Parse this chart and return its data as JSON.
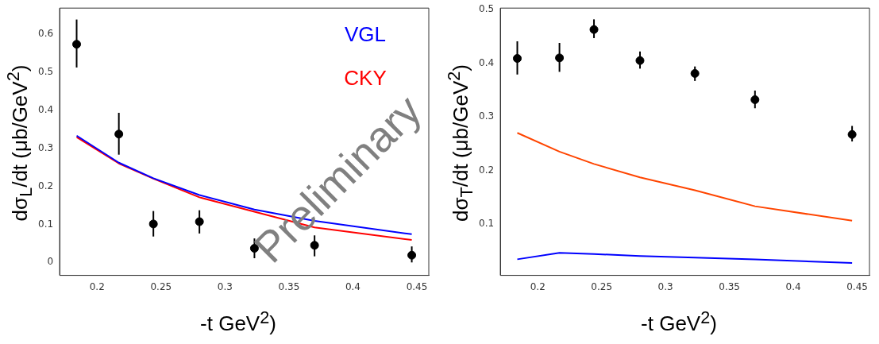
{
  "chart_data": [
    {
      "type": "scatter",
      "xlabel": "-t GeV$^{2}$)",
      "ylabel": "dσ$_{L}$/dt (μb/GeV$^{2}$)",
      "xlim": [
        0.1707,
        0.4593
      ],
      "xticks": [
        0.2,
        0.25,
        0.3,
        0.35,
        0.4,
        0.45
      ],
      "ylim": [
        -0.034,
        0.668
      ],
      "yticks": [
        0,
        0.1,
        0.2,
        0.3,
        0.4,
        0.5,
        0.6
      ],
      "legend": "top right",
      "annotations": [
        "Preliminary"
      ],
      "series": [
        {
          "type": "scatter",
          "marker": "circle",
          "color": "#000000",
          "x": [
            0.184,
            0.217,
            0.244,
            0.28,
            0.323,
            0.37,
            0.446
          ],
          "values": [
            0.573,
            0.337,
            0.101,
            0.107,
            0.037,
            0.045,
            0.019
          ],
          "errors": [
            [
              0.512,
              0.638
            ],
            [
              0.283,
              0.393
            ],
            [
              0.068,
              0.135
            ],
            [
              0.076,
              0.137
            ],
            [
              0.011,
              0.063
            ],
            [
              0.016,
              0.071
            ],
            [
              0.0,
              0.042
            ]
          ]
        },
        {
          "type": "line",
          "name": "VGL",
          "color": "#0000ff",
          "x": [
            0.184,
            0.217,
            0.244,
            0.28,
            0.323,
            0.37,
            0.446
          ],
          "values": [
            0.333,
            0.262,
            0.221,
            0.177,
            0.139,
            0.109,
            0.074
          ]
        },
        {
          "type": "line",
          "name": "CKY",
          "color": "#ff0000",
          "x": [
            0.184,
            0.217,
            0.244,
            0.28,
            0.323,
            0.37,
            0.446
          ],
          "values": [
            0.329,
            0.26,
            0.22,
            0.171,
            0.133,
            0.092,
            0.059
          ]
        }
      ]
    },
    {
      "type": "scatter",
      "xlabel": "-t GeV$^{2}$)",
      "ylabel": "dσ$_{T}$/dt (μb/GeV$^{2}$)",
      "xlim": [
        0.1707,
        0.4596
      ],
      "xticks": [
        0.2,
        0.25,
        0.3,
        0.35,
        0.4,
        0.45
      ],
      "ylim": [
        0.004,
        0.503
      ],
      "yticks": [
        0.1,
        0.2,
        0.3,
        0.4,
        0.5
      ],
      "series": [
        {
          "type": "scatter",
          "marker": "circle",
          "color": "#000000",
          "x": [
            0.184,
            0.217,
            0.244,
            0.28,
            0.323,
            0.37,
            0.446
          ],
          "values": [
            0.409,
            0.41,
            0.463,
            0.405,
            0.381,
            0.332,
            0.267
          ],
          "errors": [
            [
              0.379,
              0.441
            ],
            [
              0.384,
              0.438
            ],
            [
              0.447,
              0.482
            ],
            [
              0.39,
              0.422
            ],
            [
              0.367,
              0.394
            ],
            [
              0.316,
              0.349
            ],
            [
              0.254,
              0.283
            ]
          ]
        },
        {
          "type": "line",
          "color": "#ff4500",
          "x": [
            0.184,
            0.217,
            0.244,
            0.28,
            0.323,
            0.37,
            0.446
          ],
          "values": [
            0.27,
            0.235,
            0.212,
            0.187,
            0.163,
            0.133,
            0.106
          ]
        },
        {
          "type": "line",
          "color": "#0000ff",
          "x": [
            0.184,
            0.217,
            0.244,
            0.28,
            0.323,
            0.37,
            0.446
          ],
          "values": [
            0.034,
            0.046,
            0.044,
            0.04,
            0.037,
            0.034,
            0.027
          ]
        }
      ]
    }
  ]
}
